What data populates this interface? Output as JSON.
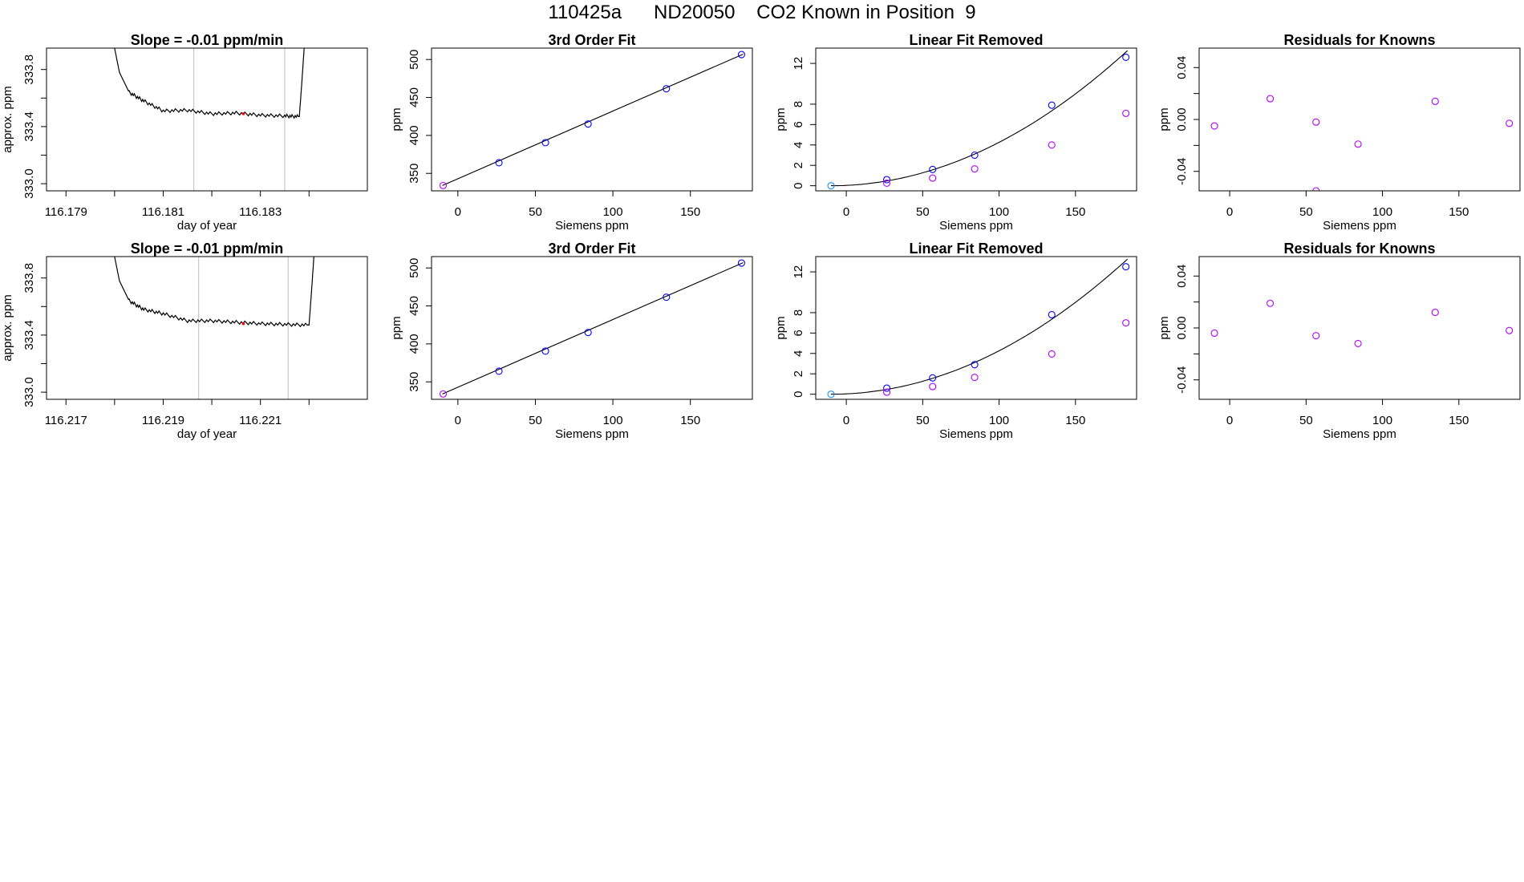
{
  "page_title": "110425a      ND20050    CO2 Known in Position  9",
  "colors": {
    "line": "#000000",
    "grid": "#bebebe",
    "known": "#0000ff",
    "residual": "#b000ff",
    "marker": "#ff0000",
    "first_point": "#1e90ff"
  },
  "chart_data": [
    {
      "type": "line",
      "row": 0,
      "col": 0,
      "title": "Slope =  -0.01  ppm/min",
      "xlabel": "day of year",
      "ylabel": "approx. ppm",
      "xlim": [
        116.1786,
        116.1852
      ],
      "ylim": [
        332.95,
        333.95
      ],
      "xticks": [
        116.179,
        116.18,
        116.181,
        116.182,
        116.183,
        116.184
      ],
      "xtick_labels": [
        "116.179",
        "",
        "116.181",
        "",
        "116.183",
        ""
      ],
      "yticks": [
        333.0,
        333.2,
        333.4,
        333.6,
        333.8
      ],
      "ytick_labels": [
        "333.0",
        "",
        "333.4",
        "",
        "333.8"
      ],
      "vlines": [
        116.18163,
        116.1835
      ],
      "series": [
        {
          "name": "trace",
          "x": [
            116.18,
            116.1801,
            116.1803,
            116.1806,
            116.181,
            116.1815,
            116.182,
            116.1825,
            116.183,
            116.1835,
            116.1838,
            116.18385,
            116.1839
          ],
          "y": [
            333.95,
            333.78,
            333.64,
            333.58,
            333.51,
            333.515,
            333.49,
            333.495,
            333.48,
            333.475,
            333.47,
            333.7,
            333.95
          ]
        }
      ],
      "highlight": {
        "x": 116.18265,
        "y": 333.49
      }
    },
    {
      "type": "scatter",
      "row": 0,
      "col": 1,
      "title": "3rd Order Fit",
      "xlabel": "Siemens ppm",
      "ylabel": "ppm",
      "xlim": [
        -17,
        190
      ],
      "ylim": [
        327,
        515
      ],
      "xticks": [
        0,
        50,
        100,
        150
      ],
      "xtick_labels": [
        "0",
        "50",
        "100",
        "150"
      ],
      "yticks": [
        350,
        400,
        450,
        500
      ],
      "ytick_labels": [
        "350",
        "400",
        "450",
        "500"
      ],
      "curve": {
        "x": [
          -10,
          184
        ],
        "y": [
          334,
          507
        ]
      },
      "series": [
        {
          "name": "knowns",
          "x": [
            26.5,
            56.5,
            84,
            134.5,
            183
          ],
          "y": [
            364,
            390.5,
            415,
            461.5,
            506.5
          ]
        },
        {
          "name": "reference",
          "x": [
            -9.5
          ],
          "y": [
            334
          ]
        }
      ]
    },
    {
      "type": "scatter",
      "row": 0,
      "col": 2,
      "title": "Linear Fit Removed",
      "xlabel": "Siemens ppm",
      "ylabel": "ppm",
      "xlim": [
        -20,
        190
      ],
      "ylim": [
        -0.5,
        13.5
      ],
      "xticks": [
        0,
        50,
        100,
        150
      ],
      "xtick_labels": [
        "0",
        "50",
        "100",
        "150"
      ],
      "yticks": [
        0,
        2,
        4,
        6,
        8,
        12
      ],
      "ytick_labels": [
        "0",
        "2",
        "4",
        "6",
        "8",
        "12"
      ],
      "curve_params": {
        "a": 0.000352,
        "c": -10,
        "from": -10,
        "to": 184
      },
      "series": [
        {
          "name": "fit",
          "x": [
            -10,
            26.5,
            56.5,
            84,
            134.5,
            183
          ],
          "y": [
            0,
            0.6,
            1.6,
            3.0,
            7.9,
            12.6
          ]
        },
        {
          "name": "linear_removed",
          "x": [
            26.5,
            56.5,
            84,
            134.5,
            183
          ],
          "y": [
            0.25,
            0.75,
            1.65,
            4.0,
            7.1
          ]
        }
      ]
    },
    {
      "type": "scatter",
      "row": 0,
      "col": 3,
      "title": "Residuals for Knowns",
      "xlabel": "Siemens ppm",
      "ylabel": "ppm",
      "xlim": [
        -20,
        190
      ],
      "ylim": [
        -0.055,
        0.055
      ],
      "xticks": [
        0,
        50,
        100,
        150
      ],
      "xtick_labels": [
        "0",
        "50",
        "100",
        "150"
      ],
      "yticks": [
        -0.04,
        -0.02,
        0.0,
        0.02,
        0.04
      ],
      "ytick_labels": [
        "-0.04",
        "",
        "0.00",
        "",
        "0.04"
      ],
      "series": [
        {
          "name": "residuals",
          "x": [
            -10,
            26.5,
            56.5,
            56.5,
            84,
            134.5,
            183
          ],
          "y": [
            -0.005,
            0.016,
            -0.002,
            -0.055,
            -0.019,
            0.014,
            -0.003
          ]
        }
      ]
    },
    {
      "type": "line",
      "row": 1,
      "col": 0,
      "title": "Slope =  -0.01  ppm/min",
      "xlabel": "day of year",
      "ylabel": "approx. ppm",
      "xlim": [
        116.2166,
        116.2232
      ],
      "ylim": [
        332.95,
        333.95
      ],
      "xticks": [
        116.217,
        116.218,
        116.219,
        116.22,
        116.221,
        116.222
      ],
      "xtick_labels": [
        "116.217",
        "",
        "116.219",
        "",
        "116.221",
        ""
      ],
      "yticks": [
        333.0,
        333.2,
        333.4,
        333.6,
        333.8
      ],
      "ytick_labels": [
        "333.0",
        "",
        "333.4",
        "",
        "333.8"
      ],
      "vlines": [
        116.21973,
        116.22157
      ],
      "series": [
        {
          "name": "trace",
          "x": [
            116.218,
            116.2181,
            116.2183,
            116.2186,
            116.219,
            116.2195,
            116.22,
            116.2205,
            116.221,
            116.2215,
            116.222,
            116.22205,
            116.2221
          ],
          "y": [
            333.95,
            333.78,
            333.64,
            333.58,
            333.55,
            333.5,
            333.5,
            333.49,
            333.48,
            333.475,
            333.47,
            333.7,
            333.95
          ]
        }
      ],
      "highlight": {
        "x": 116.22065,
        "y": 333.48
      }
    },
    {
      "type": "scatter",
      "row": 1,
      "col": 1,
      "title": "3rd Order Fit",
      "xlabel": "Siemens ppm",
      "ylabel": "ppm",
      "xlim": [
        -17,
        190
      ],
      "ylim": [
        327,
        515
      ],
      "xticks": [
        0,
        50,
        100,
        150
      ],
      "xtick_labels": [
        "0",
        "50",
        "100",
        "150"
      ],
      "yticks": [
        350,
        400,
        450,
        500
      ],
      "ytick_labels": [
        "350",
        "400",
        "450",
        "500"
      ],
      "curve": {
        "x": [
          -10,
          184
        ],
        "y": [
          334,
          507
        ]
      },
      "series": [
        {
          "name": "knowns",
          "x": [
            26.5,
            56.5,
            84,
            134.5,
            183
          ],
          "y": [
            364,
            390.5,
            415,
            461.5,
            506.5
          ]
        },
        {
          "name": "reference",
          "x": [
            -9.5
          ],
          "y": [
            334
          ]
        }
      ]
    },
    {
      "type": "scatter",
      "row": 1,
      "col": 2,
      "title": "Linear Fit Removed",
      "xlabel": "Siemens ppm",
      "ylabel": "ppm",
      "xlim": [
        -20,
        190
      ],
      "ylim": [
        -0.5,
        13.5
      ],
      "xticks": [
        0,
        50,
        100,
        150
      ],
      "xtick_labels": [
        "0",
        "50",
        "100",
        "150"
      ],
      "yticks": [
        0,
        2,
        4,
        6,
        8,
        12
      ],
      "ytick_labels": [
        "0",
        "2",
        "4",
        "6",
        "8",
        "12"
      ],
      "curve_params": {
        "a": 0.000352,
        "c": -10,
        "from": -10,
        "to": 184
      },
      "series": [
        {
          "name": "fit",
          "x": [
            -10,
            26.5,
            56.5,
            84,
            134.5,
            183
          ],
          "y": [
            0,
            0.6,
            1.6,
            2.9,
            7.8,
            12.5
          ]
        },
        {
          "name": "linear_removed",
          "x": [
            26.5,
            56.5,
            84,
            134.5,
            183
          ],
          "y": [
            0.2,
            0.75,
            1.65,
            3.95,
            7.0
          ]
        }
      ]
    },
    {
      "type": "scatter",
      "row": 1,
      "col": 3,
      "title": "Residuals for Knowns",
      "xlabel": "Siemens ppm",
      "ylabel": "ppm",
      "xlim": [
        -20,
        190
      ],
      "ylim": [
        -0.055,
        0.055
      ],
      "xticks": [
        0,
        50,
        100,
        150
      ],
      "xtick_labels": [
        "0",
        "50",
        "100",
        "150"
      ],
      "yticks": [
        -0.04,
        -0.02,
        0.0,
        0.02,
        0.04
      ],
      "ytick_labels": [
        "-0.04",
        "",
        "0.00",
        "",
        "0.04"
      ],
      "series": [
        {
          "name": "residuals",
          "x": [
            -10,
            26.5,
            56.5,
            84,
            134.5,
            183
          ],
          "y": [
            -0.004,
            0.019,
            -0.006,
            -0.012,
            0.012,
            -0.002
          ]
        }
      ]
    }
  ]
}
